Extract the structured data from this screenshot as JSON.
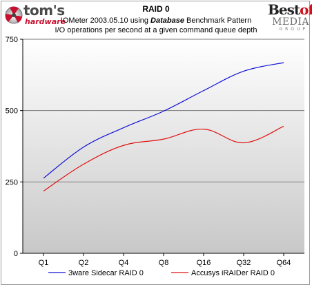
{
  "header": {
    "title": "RAID 0",
    "subtitle_prefix": "IOMeter 2003.05.10 using ",
    "subtitle_emphasis": "Database",
    "subtitle_suffix": " Benchmark Pattern",
    "subtitle2": "I/O operations per second at a given command queue depth"
  },
  "logos": {
    "left_word": "tom's",
    "left_sub": "hardware",
    "right_best": "Best",
    "right_of": "of",
    "right_media": "MEDIA",
    "right_group": "GROUP"
  },
  "colors": {
    "plot_bg_top": "#ffffff",
    "plot_bg_bottom": "#c8c8c8",
    "series_blue": "#1010d8",
    "series_red": "#e01010"
  },
  "chart_data": {
    "type": "line",
    "title": "RAID 0",
    "categories": [
      "Q1",
      "Q2",
      "Q4",
      "Q8",
      "Q16",
      "Q32",
      "Q64"
    ],
    "ylim": [
      0,
      750
    ],
    "yticks": [
      0,
      250,
      500,
      750
    ],
    "grid": true,
    "legend_position": "bottom",
    "series": [
      {
        "name": "3ware Sidecar RAID 0",
        "color": "#1010d8",
        "values": [
          263,
          372,
          440,
          498,
          570,
          638,
          668
        ]
      },
      {
        "name": "Accusys iRAIDer RAID 0",
        "color": "#e01010",
        "values": [
          218,
          312,
          378,
          400,
          435,
          387,
          445
        ]
      }
    ]
  }
}
